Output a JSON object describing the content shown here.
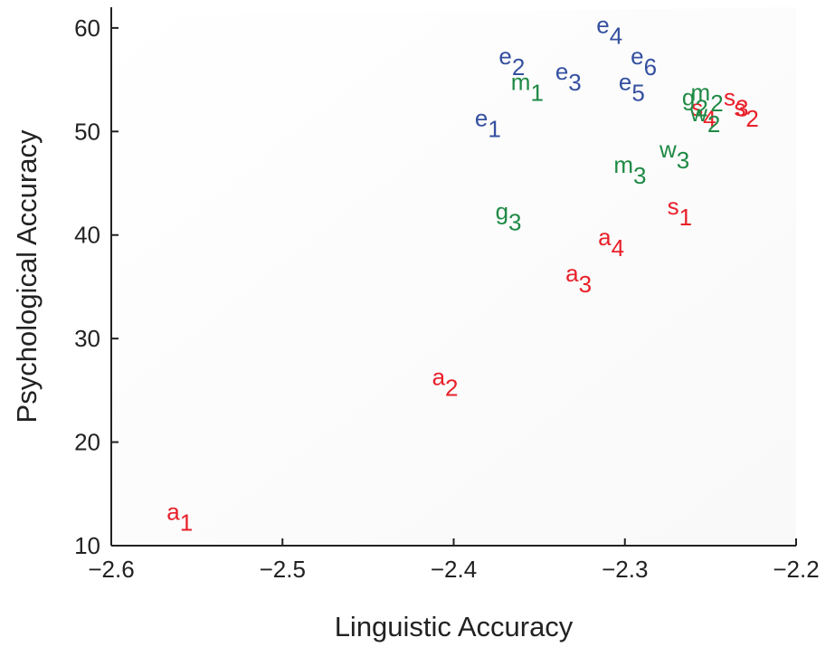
{
  "chart_data": {
    "type": "scatter",
    "title": "",
    "xlabel": "Linguistic Accuracy",
    "ylabel": "Psychological Accuracy",
    "xlim": [
      -2.6,
      -2.2
    ],
    "ylim": [
      10,
      62
    ],
    "x_ticks": [
      -2.6,
      -2.5,
      -2.4,
      -2.3,
      -2.2
    ],
    "x_tick_labels": [
      "−2.6",
      "−2.5",
      "−2.4",
      "−2.3",
      "−2.2"
    ],
    "y_ticks": [
      10,
      20,
      30,
      40,
      50,
      60
    ],
    "y_tick_labels": [
      "10",
      "20",
      "30",
      "40",
      "50",
      "60"
    ],
    "grid": false,
    "colors": {
      "red": "#e8202a",
      "blue": "#3550a0",
      "green": "#1f8a45",
      "axis": "#222222"
    },
    "series": [
      {
        "color_key": "red",
        "points": [
          {
            "label": "a",
            "sub": "1",
            "x": -2.56,
            "y": 12.5
          },
          {
            "label": "a",
            "sub": "2",
            "x": -2.405,
            "y": 25.5
          },
          {
            "label": "a",
            "sub": "3",
            "x": -2.327,
            "y": 35.5
          },
          {
            "label": "a",
            "sub": "4",
            "x": -2.308,
            "y": 39.0
          },
          {
            "label": "s",
            "sub": "1",
            "x": -2.268,
            "y": 42.0
          },
          {
            "label": "s",
            "sub": "2",
            "x": -2.229,
            "y": 51.5
          },
          {
            "label": "s",
            "sub": "3",
            "x": -2.235,
            "y": 52.5
          },
          {
            "label": "s",
            "sub": "4",
            "x": -2.254,
            "y": 51.5
          }
        ]
      },
      {
        "color_key": "blue",
        "points": [
          {
            "label": "e",
            "sub": "1",
            "x": -2.38,
            "y": 50.5
          },
          {
            "label": "e",
            "sub": "2",
            "x": -2.366,
            "y": 56.5
          },
          {
            "label": "e",
            "sub": "3",
            "x": -2.333,
            "y": 55.0
          },
          {
            "label": "e",
            "sub": "4",
            "x": -2.309,
            "y": 59.5
          },
          {
            "label": "e",
            "sub": "5",
            "x": -2.296,
            "y": 54.0
          },
          {
            "label": "e",
            "sub": "6",
            "x": -2.289,
            "y": 56.5
          }
        ]
      },
      {
        "color_key": "green",
        "points": [
          {
            "label": "m",
            "sub": "1",
            "x": -2.357,
            "y": 54.0
          },
          {
            "label": "g",
            "sub": "3",
            "x": -2.368,
            "y": 41.5
          },
          {
            "label": "m",
            "sub": "3",
            "x": -2.297,
            "y": 46.0
          },
          {
            "label": "w",
            "sub": "3",
            "x": -2.271,
            "y": 47.5
          },
          {
            "label": "m",
            "sub": "2",
            "x": -2.252,
            "y": 53.0
          },
          {
            "label": "g",
            "sub": "2",
            "x": -2.259,
            "y": 52.5
          },
          {
            "label": "w",
            "sub": "2",
            "x": -2.253,
            "y": 51.0
          }
        ]
      }
    ]
  }
}
